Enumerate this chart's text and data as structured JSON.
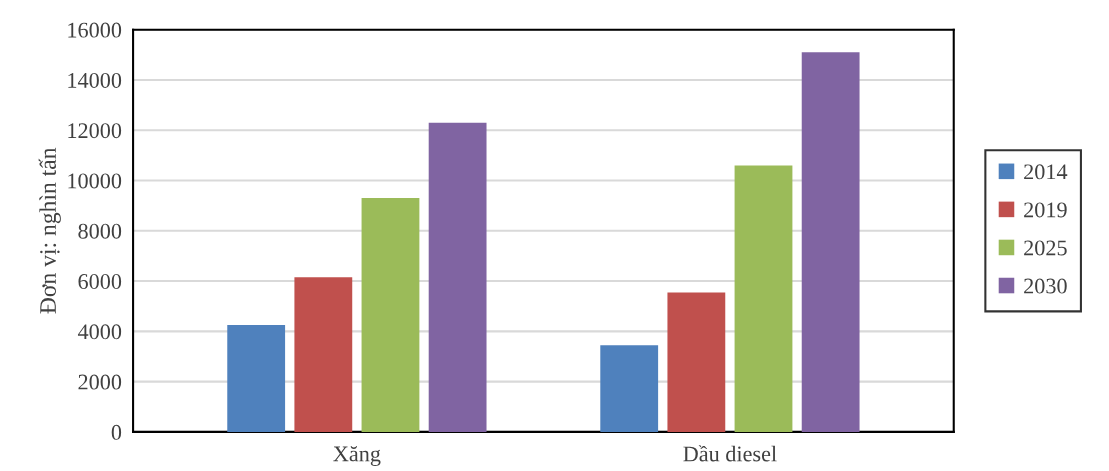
{
  "chart_data": {
    "type": "bar",
    "ylabel": "Đơn vị: nghìn tấn",
    "categories": [
      "Xăng",
      "Dầu diesel"
    ],
    "series": [
      {
        "name": "2014",
        "color": "#4f81bd",
        "values": [
          4250,
          3450
        ]
      },
      {
        "name": "2019",
        "color": "#c0504d",
        "values": [
          6150,
          5550
        ]
      },
      {
        "name": "2025",
        "color": "#9bbb59",
        "values": [
          9300,
          10600
        ]
      },
      {
        "name": "2030",
        "color": "#8064a2",
        "values": [
          12300,
          15100
        ]
      }
    ],
    "ylim": [
      0,
      16000
    ],
    "yticks": [
      0,
      2000,
      4000,
      6000,
      8000,
      10000,
      12000,
      14000,
      16000
    ],
    "grid": "y",
    "legend": "right"
  }
}
